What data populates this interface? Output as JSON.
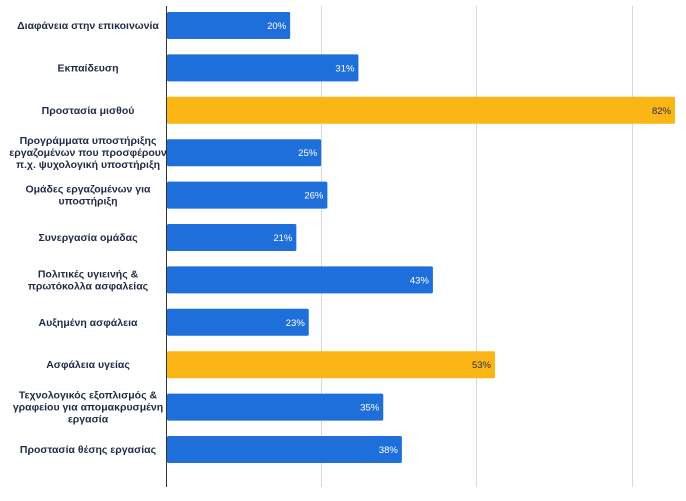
{
  "chart_data": {
    "type": "bar",
    "orientation": "horizontal",
    "categories": [
      "Διαφάνεια στην επικοινωνία",
      "Εκπαίδευση",
      "Προστασία μισθού",
      "Προγράμματα υποστήριξης εργαζομένων που προσφέρουν π.χ. ψυχολογική υποστήριξη",
      "Ομάδες εργαζομένων για υποστήριξη",
      "Συνεργασία ομάδας",
      "Πολιτικές υγιεινής & πρωτόκολλα ασφαλείας",
      "Αυξημένη ασφάλεια",
      "Ασφάλεια υγείας",
      "Τεχνολογικός εξοπλισμός & γραφείου για απομακρυσμένη εργασία",
      "Προστασία θέσης εργασίας"
    ],
    "category_lines": [
      [
        "Διαφάνεια στην επικοινωνία"
      ],
      [
        "Εκπαίδευση"
      ],
      [
        "Προστασία μισθού"
      ],
      [
        "Προγράμματα υποστήριξης",
        "εργαζομένων που προσφέρουν",
        "π.χ. ψυχολογική υποστήριξη"
      ],
      [
        "Ομάδες εργαζομένων για",
        "υποστήριξη"
      ],
      [
        "Συνεργασία ομάδας"
      ],
      [
        "Πολιτικές υγιεινής &",
        "πρωτόκολλα ασφαλείας"
      ],
      [
        "Αυξημένη ασφάλεια"
      ],
      [
        "Ασφάλεια υγείας"
      ],
      [
        "Τεχνολογικός εξοπλισμός &",
        "γραφείου για απομακρυσμένη",
        "εργασία"
      ],
      [
        "Προστασία θέσης εργασίας"
      ]
    ],
    "values": [
      20,
      31,
      82,
      25,
      26,
      21,
      43,
      23,
      53,
      35,
      38
    ],
    "value_labels": [
      "20%",
      "31%",
      "82%",
      "25%",
      "26%",
      "21%",
      "43%",
      "23%",
      "53%",
      "35%",
      "38%"
    ],
    "highlighted": [
      false,
      false,
      true,
      false,
      false,
      false,
      false,
      false,
      true,
      false,
      false
    ],
    "xlim": [
      0,
      82
    ],
    "grid_values": [
      0,
      25,
      50,
      75
    ],
    "grid": true,
    "title": "",
    "xlabel": "",
    "ylabel": "",
    "colors": {
      "bar": "#1e6fd9",
      "highlight": "#fbb514",
      "label_on_bar": "#ffffff",
      "label_on_highlight": "#1f2a44"
    }
  }
}
